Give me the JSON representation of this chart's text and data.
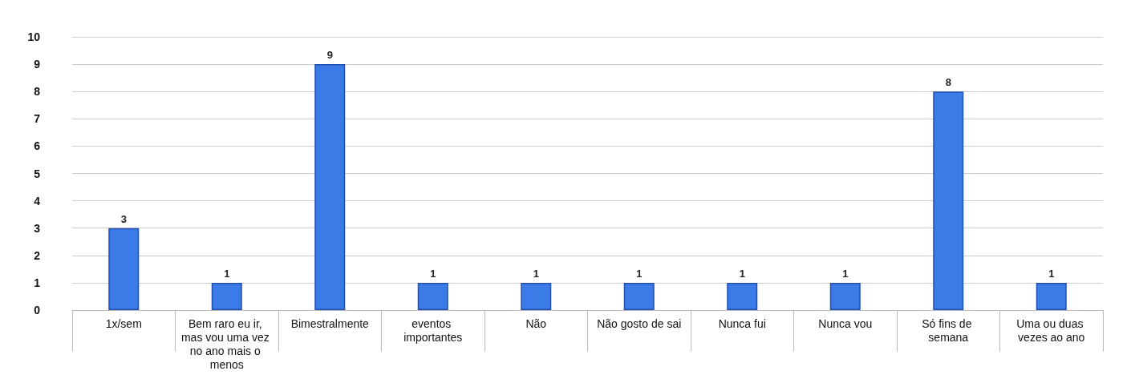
{
  "chart_data": {
    "type": "bar",
    "categories": [
      "1x/sem",
      "Bem raro eu ir, mas vou uma vez no ano mais o menos",
      "Bimestralmente",
      "eventos importantes",
      "Não",
      "Não gosto de sai",
      "Nunca fui",
      "Nunca vou",
      "Só fins de semana",
      "Uma ou duas vezes ao ano"
    ],
    "values": [
      3,
      1,
      9,
      1,
      1,
      1,
      1,
      1,
      8,
      1
    ],
    "color": "#3b7be8",
    "ylim": [
      0,
      10
    ],
    "yticks": [
      0,
      1,
      2,
      3,
      4,
      5,
      6,
      7,
      8,
      9,
      10
    ],
    "grid": "y",
    "data_labels": true
  }
}
